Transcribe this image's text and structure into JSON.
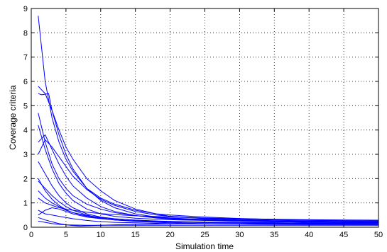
{
  "chart_data": {
    "type": "line",
    "title": "",
    "xlabel": "Simulation time",
    "ylabel": "Coverage criteria",
    "xlim": [
      0,
      50
    ],
    "ylim": [
      0,
      9
    ],
    "xticks": [
      0,
      5,
      10,
      15,
      20,
      25,
      30,
      35,
      40,
      45,
      50
    ],
    "yticks": [
      0,
      1,
      2,
      3,
      4,
      5,
      6,
      7,
      8,
      9
    ],
    "grid": true,
    "line_color": "#0000ff",
    "series": [
      {
        "x": [
          1,
          2,
          3,
          4,
          5,
          6,
          8,
          10,
          12,
          15,
          18,
          20,
          25,
          30,
          35,
          40,
          45,
          50
        ],
        "y": [
          8.7,
          6.0,
          4.5,
          3.5,
          2.8,
          2.3,
          1.6,
          1.2,
          0.95,
          0.7,
          0.55,
          0.5,
          0.42,
          0.36,
          0.32,
          0.29,
          0.27,
          0.25
        ]
      },
      {
        "x": [
          1,
          2,
          3,
          4,
          5,
          6,
          8,
          10,
          12,
          15,
          18,
          20,
          25,
          30,
          35,
          40,
          45,
          50
        ],
        "y": [
          5.8,
          5.5,
          4.8,
          4.0,
          3.3,
          2.8,
          2.0,
          1.5,
          1.1,
          0.75,
          0.55,
          0.45,
          0.35,
          0.3,
          0.27,
          0.25,
          0.24,
          0.22
        ]
      },
      {
        "x": [
          1,
          1.5,
          2.5,
          3,
          4,
          5,
          6,
          8,
          10,
          12,
          15,
          18,
          20,
          25,
          30,
          35,
          40,
          45,
          50
        ],
        "y": [
          5.5,
          5.45,
          5.5,
          4.8,
          3.8,
          3.0,
          2.4,
          1.6,
          1.1,
          0.8,
          0.55,
          0.42,
          0.38,
          0.32,
          0.28,
          0.26,
          0.24,
          0.23,
          0.22
        ]
      },
      {
        "x": [
          1,
          2,
          3,
          4,
          5,
          6,
          8,
          10,
          12,
          15,
          18,
          20,
          25,
          30,
          35,
          40,
          45,
          50
        ],
        "y": [
          4.7,
          3.5,
          2.6,
          2.0,
          1.6,
          1.3,
          0.95,
          0.75,
          0.6,
          0.48,
          0.4,
          0.36,
          0.3,
          0.27,
          0.24,
          0.22,
          0.21,
          0.2
        ]
      },
      {
        "x": [
          1,
          2,
          3,
          4,
          5,
          6,
          8,
          10,
          12,
          15,
          18,
          20,
          25,
          30,
          35,
          40,
          45,
          50
        ],
        "y": [
          3.5,
          3.8,
          3.2,
          2.6,
          2.1,
          1.7,
          1.2,
          0.85,
          0.65,
          0.48,
          0.38,
          0.34,
          0.28,
          0.24,
          0.22,
          0.2,
          0.19,
          0.18
        ]
      },
      {
        "x": [
          1,
          2,
          3,
          4,
          5,
          6,
          8,
          10,
          12,
          15,
          18,
          20,
          25,
          30,
          35,
          40,
          45,
          50
        ],
        "y": [
          3.0,
          3.6,
          3.3,
          2.9,
          2.5,
          2.1,
          1.55,
          1.15,
          0.9,
          0.65,
          0.5,
          0.45,
          0.37,
          0.33,
          0.3,
          0.28,
          0.27,
          0.26
        ]
      },
      {
        "x": [
          1,
          2,
          3,
          4,
          5,
          6,
          8,
          10,
          12,
          15,
          18,
          20,
          25,
          30,
          35,
          40,
          45,
          50
        ],
        "y": [
          2.7,
          2.2,
          1.7,
          1.3,
          1.0,
          0.8,
          0.55,
          0.42,
          0.35,
          0.29,
          0.25,
          0.23,
          0.2,
          0.19,
          0.18,
          0.17,
          0.17,
          0.16
        ]
      },
      {
        "x": [
          1,
          2,
          3,
          4,
          5,
          6,
          8,
          10,
          12,
          15,
          18,
          20,
          25,
          30,
          35,
          40,
          45,
          50
        ],
        "y": [
          2.0,
          1.5,
          1.15,
          0.9,
          0.72,
          0.6,
          0.45,
          0.36,
          0.31,
          0.26,
          0.23,
          0.21,
          0.19,
          0.18,
          0.17,
          0.16,
          0.15,
          0.15
        ]
      },
      {
        "x": [
          1,
          2,
          3,
          4,
          5,
          6,
          8,
          10,
          12,
          15,
          18,
          20,
          25,
          30,
          35,
          40,
          45,
          50
        ],
        "y": [
          1.5,
          1.2,
          1.0,
          0.85,
          0.7,
          0.6,
          0.48,
          0.4,
          0.34,
          0.29,
          0.26,
          0.24,
          0.21,
          0.19,
          0.18,
          0.17,
          0.16,
          0.16
        ]
      },
      {
        "x": [
          1,
          2,
          3,
          4,
          5,
          6,
          8,
          10,
          12,
          15,
          18,
          20,
          25,
          30,
          35,
          40,
          45,
          50
        ],
        "y": [
          1.2,
          1.0,
          0.9,
          0.8,
          0.75,
          0.7,
          0.62,
          0.56,
          0.52,
          0.47,
          0.44,
          0.42,
          0.38,
          0.35,
          0.33,
          0.31,
          0.3,
          0.29
        ]
      },
      {
        "x": [
          1,
          2,
          3,
          4,
          5,
          6,
          8,
          10,
          12,
          15,
          18,
          20,
          25,
          30,
          35,
          40,
          45,
          50
        ],
        "y": [
          0.5,
          0.7,
          0.8,
          0.75,
          0.65,
          0.55,
          0.42,
          0.35,
          0.3,
          0.26,
          0.23,
          0.22,
          0.2,
          0.19,
          0.18,
          0.17,
          0.16,
          0.15
        ]
      },
      {
        "x": [
          1,
          2,
          3,
          4,
          5,
          6,
          8,
          10,
          12,
          15,
          18,
          20,
          25,
          30,
          35,
          40,
          45,
          50
        ],
        "y": [
          0.7,
          0.55,
          0.5,
          0.45,
          0.4,
          0.35,
          0.28,
          0.23,
          0.2,
          0.18,
          0.16,
          0.15,
          0.14,
          0.13,
          0.12,
          0.12,
          0.11,
          0.11
        ]
      },
      {
        "x": [
          1,
          2,
          3,
          4,
          5,
          6,
          7,
          8,
          10,
          12,
          15,
          18,
          20,
          25,
          30,
          35,
          40,
          45,
          50
        ],
        "y": [
          0.4,
          0.3,
          0.22,
          0.15,
          0.1,
          0.07,
          0.05,
          0.06,
          0.08,
          0.1,
          0.12,
          0.13,
          0.14,
          0.15,
          0.15,
          0.15,
          0.14,
          0.14,
          0.14
        ]
      },
      {
        "x": [
          1,
          2,
          3,
          4,
          5,
          6,
          8,
          10,
          12,
          15,
          18,
          20,
          25,
          30,
          35,
          40,
          45,
          50
        ],
        "y": [
          0.25,
          0.2,
          0.15,
          0.12,
          0.1,
          0.09,
          0.08,
          0.08,
          0.08,
          0.08,
          0.08,
          0.08,
          0.08,
          0.08,
          0.08,
          0.08,
          0.08,
          0.08
        ]
      },
      {
        "x": [
          1,
          2,
          3,
          4,
          5,
          6,
          8,
          10,
          12,
          15,
          18,
          20,
          25,
          30,
          35,
          40,
          45,
          50
        ],
        "y": [
          1.9,
          1.6,
          1.3,
          1.05,
          0.85,
          0.7,
          0.5,
          0.38,
          0.3,
          0.24,
          0.2,
          0.18,
          0.15,
          0.13,
          0.12,
          0.11,
          0.11,
          0.1
        ]
      },
      {
        "x": [
          1,
          2,
          3,
          4,
          5,
          6,
          8,
          10,
          12,
          15,
          18,
          20,
          25,
          30,
          35,
          40,
          45,
          50
        ],
        "y": [
          4.2,
          3.2,
          2.4,
          1.8,
          1.4,
          1.1,
          0.75,
          0.55,
          0.45,
          0.37,
          0.33,
          0.31,
          0.28,
          0.26,
          0.25,
          0.24,
          0.23,
          0.22
        ]
      }
    ]
  }
}
